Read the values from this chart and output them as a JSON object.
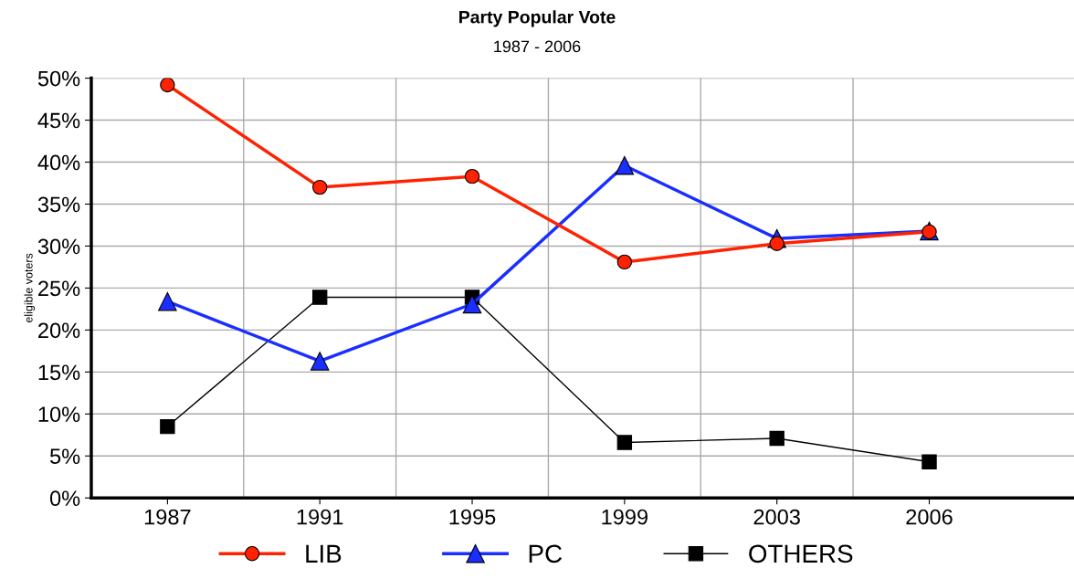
{
  "chart_data": {
    "type": "line",
    "title": "Party Popular Vote",
    "subtitle": "1987 - 2006",
    "ylabel": "eligible voters",
    "categories": [
      "1987",
      "1991",
      "1995",
      "1999",
      "2003",
      "2006"
    ],
    "series": [
      {
        "name": "LIB",
        "color": "#ff2200",
        "marker": "circle",
        "values": [
          49.2,
          37.0,
          38.3,
          28.1,
          30.3,
          31.7
        ]
      },
      {
        "name": "PC",
        "color": "#1a2eff",
        "marker": "triangle",
        "values": [
          23.4,
          16.3,
          23.1,
          39.6,
          30.9,
          31.8
        ]
      },
      {
        "name": "OTHERS",
        "color": "#000000",
        "marker": "square",
        "values": [
          8.5,
          23.9,
          23.9,
          6.6,
          7.1,
          4.3
        ]
      }
    ],
    "ylim": [
      0,
      50
    ],
    "yticks": [
      {
        "value": 0,
        "label": "0%"
      },
      {
        "value": 5,
        "label": "5%"
      },
      {
        "value": 10,
        "label": "10%"
      },
      {
        "value": 15,
        "label": "15%"
      },
      {
        "value": 20,
        "label": "20%"
      },
      {
        "value": 25,
        "label": "25%"
      },
      {
        "value": 30,
        "label": "30%"
      },
      {
        "value": 35,
        "label": "35%"
      },
      {
        "value": 40,
        "label": "40%"
      },
      {
        "value": 45,
        "label": "45%"
      },
      {
        "value": 50,
        "label": "50%"
      }
    ],
    "grid": true,
    "legend": "bottom"
  }
}
